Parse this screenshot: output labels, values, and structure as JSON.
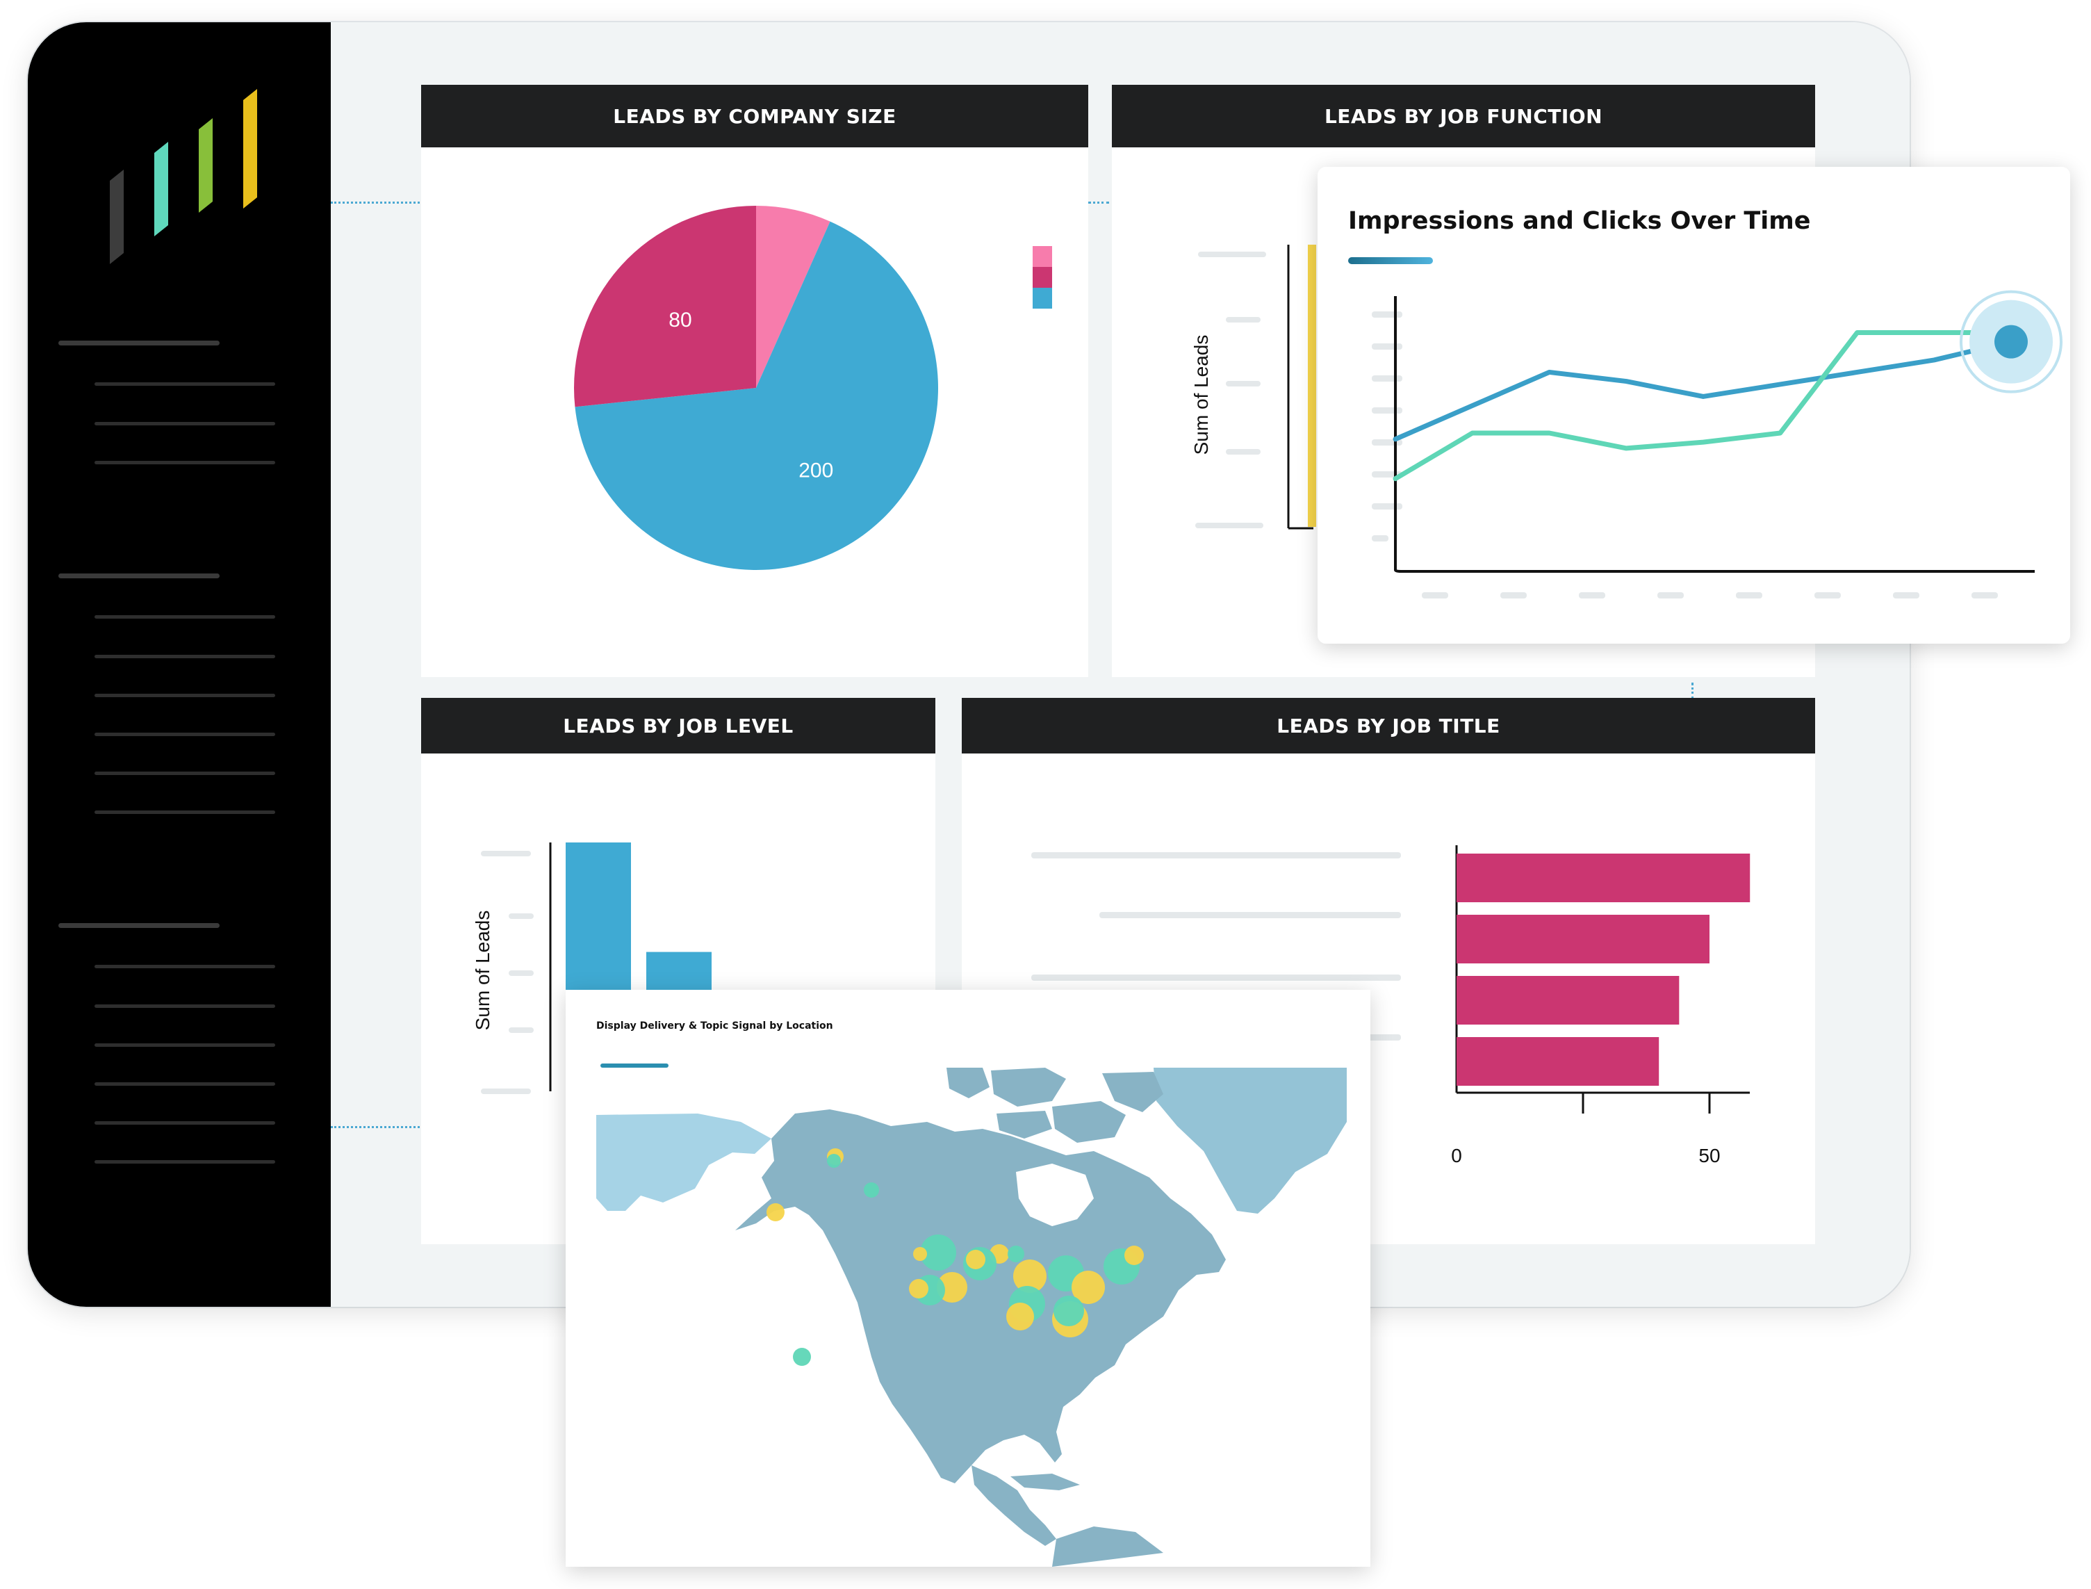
{
  "panels": {
    "company_size": {
      "title": "LEADS BY COMPANY SIZE"
    },
    "job_function": {
      "title": "LEADS BY JOB FUNCTION"
    },
    "job_level": {
      "title": "LEADS BY JOB LEVEL"
    },
    "job_title": {
      "title": "LEADS BY JOB TITLE"
    }
  },
  "colors": {
    "blue": "#3faad3",
    "magenta": "#cb3671",
    "pink": "#f77cac",
    "teal": "#5ed6b6",
    "yellow": "#f5d44b",
    "line_blue": "#3a9fc8",
    "map_land": "#88b3c5",
    "map_land_light": "#a6d3e6"
  },
  "chart_data": [
    {
      "id": "company_size",
      "type": "pie",
      "title": "LEADS BY COMPANY SIZE",
      "slices": [
        {
          "label": "",
          "value": 20,
          "color": "#f77cac"
        },
        {
          "label": "200",
          "value": 200,
          "color": "#3faad3"
        },
        {
          "label": "80",
          "value": 80,
          "color": "#cb3671"
        }
      ],
      "legend_colors": [
        "#f77cac",
        "#cb3671",
        "#3faad3"
      ],
      "legend": "right"
    },
    {
      "id": "job_function",
      "type": "bar",
      "title": "LEADS BY JOB FUNCTION",
      "ylabel": "Sum of Leads"
    },
    {
      "id": "job_level",
      "type": "bar",
      "title": "LEADS BY JOB LEVEL",
      "ylabel": "Sum of Leads",
      "values": [
        100,
        56,
        2
      ],
      "ylim": [
        0,
        100
      ],
      "color": "#3faad3"
    },
    {
      "id": "job_title",
      "type": "bar",
      "orientation": "horizontal",
      "title": "LEADS BY JOB TITLE",
      "values": [
        58,
        50,
        44,
        40
      ],
      "xlim": [
        0,
        58
      ],
      "xticks": [
        "0",
        "50"
      ],
      "color": "#cb3671"
    },
    {
      "id": "impressions_clicks",
      "type": "line",
      "title": "Impressions and Clicks Over Time",
      "x": [
        0,
        1,
        2,
        3,
        4,
        5,
        6,
        7,
        8
      ],
      "series": [
        {
          "color": "#3a9fc8",
          "values": [
            4.3,
            5.4,
            6.5,
            6.2,
            5.7,
            6.1,
            6.5,
            6.9,
            7.5
          ]
        },
        {
          "color": "#5ed6b6",
          "values": [
            3.0,
            4.5,
            4.5,
            4.0,
            4.2,
            4.5,
            7.8,
            7.8,
            7.8
          ]
        }
      ],
      "ylim": [
        0,
        9
      ]
    },
    {
      "id": "location_map",
      "type": "map",
      "title": "Display Delivery & Topic Signal by Location",
      "region": "North America"
    }
  ]
}
